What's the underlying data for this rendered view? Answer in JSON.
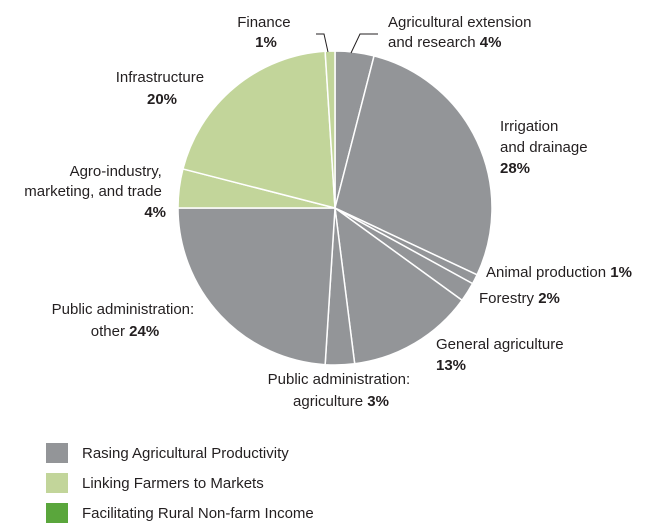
{
  "chart_data": {
    "type": "pie",
    "slices": [
      {
        "name": "Agricultural extension and research",
        "value": 4,
        "label": "4%",
        "group": "Rasing Agricultural Productivity"
      },
      {
        "name": "Irrigation and drainage",
        "value": 28,
        "label": "28%",
        "group": "Rasing Agricultural Productivity"
      },
      {
        "name": "Animal production",
        "value": 1,
        "label": "1%",
        "group": "Rasing Agricultural Productivity"
      },
      {
        "name": "Forestry",
        "value": 2,
        "label": "2%",
        "group": "Rasing Agricultural Productivity"
      },
      {
        "name": "General agriculture",
        "value": 13,
        "label": "13%",
        "group": "Rasing Agricultural Productivity"
      },
      {
        "name": "Public administration: agriculture",
        "value": 3,
        "label": "3%",
        "group": "Rasing Agricultural Productivity"
      },
      {
        "name": "Public administration: other",
        "value": 24,
        "label": "24%",
        "group": "Rasing Agricultural Productivity"
      },
      {
        "name": "Agro-industry, marketing, and trade",
        "value": 4,
        "label": "4%",
        "group": "Linking Farmers to Markets"
      },
      {
        "name": "Infrastructure",
        "value": 20,
        "label": "20%",
        "group": "Linking Farmers to Markets"
      },
      {
        "name": "Finance",
        "value": 1,
        "label": "1%",
        "group": "Linking Farmers to Markets"
      }
    ],
    "legend": [
      {
        "label": "Rasing Agricultural Productivity",
        "color": "#939598"
      },
      {
        "label": "Linking Farmers to Markets",
        "color": "#c2d59a"
      },
      {
        "label": "Facilitating Rural Non-farm Income",
        "color": "#5aa63c"
      }
    ],
    "legend_position": "bottom-left"
  }
}
